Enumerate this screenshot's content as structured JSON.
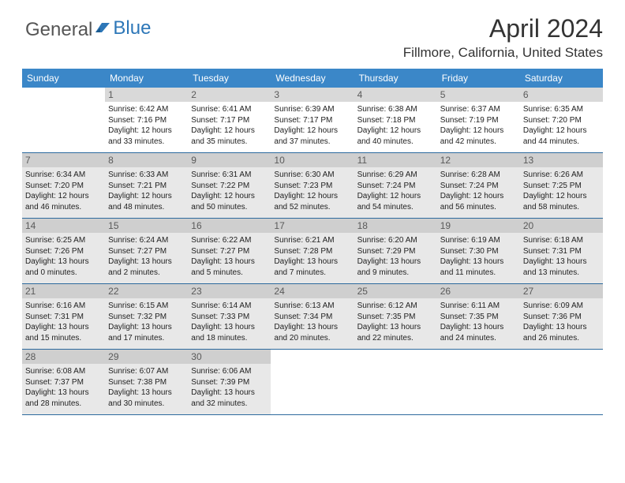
{
  "logo": {
    "part1": "General",
    "part2": "Blue"
  },
  "title": "April 2024",
  "location": "Fillmore, California, United States",
  "day_headers": [
    "Sunday",
    "Monday",
    "Tuesday",
    "Wednesday",
    "Thursday",
    "Friday",
    "Saturday"
  ],
  "colors": {
    "header_bg": "#3b87c8",
    "shaded_bg": "#e8e8e8",
    "daynum_bg": "#d9d9d9",
    "border": "#2d6a9e"
  },
  "weeks": [
    [
      {
        "day": "",
        "shaded": false,
        "sunrise": "",
        "sunset": "",
        "daylight1": "",
        "daylight2": ""
      },
      {
        "day": "1",
        "shaded": false,
        "sunrise": "Sunrise: 6:42 AM",
        "sunset": "Sunset: 7:16 PM",
        "daylight1": "Daylight: 12 hours",
        "daylight2": "and 33 minutes."
      },
      {
        "day": "2",
        "shaded": false,
        "sunrise": "Sunrise: 6:41 AM",
        "sunset": "Sunset: 7:17 PM",
        "daylight1": "Daylight: 12 hours",
        "daylight2": "and 35 minutes."
      },
      {
        "day": "3",
        "shaded": false,
        "sunrise": "Sunrise: 6:39 AM",
        "sunset": "Sunset: 7:17 PM",
        "daylight1": "Daylight: 12 hours",
        "daylight2": "and 37 minutes."
      },
      {
        "day": "4",
        "shaded": false,
        "sunrise": "Sunrise: 6:38 AM",
        "sunset": "Sunset: 7:18 PM",
        "daylight1": "Daylight: 12 hours",
        "daylight2": "and 40 minutes."
      },
      {
        "day": "5",
        "shaded": false,
        "sunrise": "Sunrise: 6:37 AM",
        "sunset": "Sunset: 7:19 PM",
        "daylight1": "Daylight: 12 hours",
        "daylight2": "and 42 minutes."
      },
      {
        "day": "6",
        "shaded": false,
        "sunrise": "Sunrise: 6:35 AM",
        "sunset": "Sunset: 7:20 PM",
        "daylight1": "Daylight: 12 hours",
        "daylight2": "and 44 minutes."
      }
    ],
    [
      {
        "day": "7",
        "shaded": true,
        "sunrise": "Sunrise: 6:34 AM",
        "sunset": "Sunset: 7:20 PM",
        "daylight1": "Daylight: 12 hours",
        "daylight2": "and 46 minutes."
      },
      {
        "day": "8",
        "shaded": true,
        "sunrise": "Sunrise: 6:33 AM",
        "sunset": "Sunset: 7:21 PM",
        "daylight1": "Daylight: 12 hours",
        "daylight2": "and 48 minutes."
      },
      {
        "day": "9",
        "shaded": true,
        "sunrise": "Sunrise: 6:31 AM",
        "sunset": "Sunset: 7:22 PM",
        "daylight1": "Daylight: 12 hours",
        "daylight2": "and 50 minutes."
      },
      {
        "day": "10",
        "shaded": true,
        "sunrise": "Sunrise: 6:30 AM",
        "sunset": "Sunset: 7:23 PM",
        "daylight1": "Daylight: 12 hours",
        "daylight2": "and 52 minutes."
      },
      {
        "day": "11",
        "shaded": true,
        "sunrise": "Sunrise: 6:29 AM",
        "sunset": "Sunset: 7:24 PM",
        "daylight1": "Daylight: 12 hours",
        "daylight2": "and 54 minutes."
      },
      {
        "day": "12",
        "shaded": true,
        "sunrise": "Sunrise: 6:28 AM",
        "sunset": "Sunset: 7:24 PM",
        "daylight1": "Daylight: 12 hours",
        "daylight2": "and 56 minutes."
      },
      {
        "day": "13",
        "shaded": true,
        "sunrise": "Sunrise: 6:26 AM",
        "sunset": "Sunset: 7:25 PM",
        "daylight1": "Daylight: 12 hours",
        "daylight2": "and 58 minutes."
      }
    ],
    [
      {
        "day": "14",
        "shaded": true,
        "sunrise": "Sunrise: 6:25 AM",
        "sunset": "Sunset: 7:26 PM",
        "daylight1": "Daylight: 13 hours",
        "daylight2": "and 0 minutes."
      },
      {
        "day": "15",
        "shaded": true,
        "sunrise": "Sunrise: 6:24 AM",
        "sunset": "Sunset: 7:27 PM",
        "daylight1": "Daylight: 13 hours",
        "daylight2": "and 2 minutes."
      },
      {
        "day": "16",
        "shaded": true,
        "sunrise": "Sunrise: 6:22 AM",
        "sunset": "Sunset: 7:27 PM",
        "daylight1": "Daylight: 13 hours",
        "daylight2": "and 5 minutes."
      },
      {
        "day": "17",
        "shaded": true,
        "sunrise": "Sunrise: 6:21 AM",
        "sunset": "Sunset: 7:28 PM",
        "daylight1": "Daylight: 13 hours",
        "daylight2": "and 7 minutes."
      },
      {
        "day": "18",
        "shaded": true,
        "sunrise": "Sunrise: 6:20 AM",
        "sunset": "Sunset: 7:29 PM",
        "daylight1": "Daylight: 13 hours",
        "daylight2": "and 9 minutes."
      },
      {
        "day": "19",
        "shaded": true,
        "sunrise": "Sunrise: 6:19 AM",
        "sunset": "Sunset: 7:30 PM",
        "daylight1": "Daylight: 13 hours",
        "daylight2": "and 11 minutes."
      },
      {
        "day": "20",
        "shaded": true,
        "sunrise": "Sunrise: 6:18 AM",
        "sunset": "Sunset: 7:31 PM",
        "daylight1": "Daylight: 13 hours",
        "daylight2": "and 13 minutes."
      }
    ],
    [
      {
        "day": "21",
        "shaded": true,
        "sunrise": "Sunrise: 6:16 AM",
        "sunset": "Sunset: 7:31 PM",
        "daylight1": "Daylight: 13 hours",
        "daylight2": "and 15 minutes."
      },
      {
        "day": "22",
        "shaded": true,
        "sunrise": "Sunrise: 6:15 AM",
        "sunset": "Sunset: 7:32 PM",
        "daylight1": "Daylight: 13 hours",
        "daylight2": "and 17 minutes."
      },
      {
        "day": "23",
        "shaded": true,
        "sunrise": "Sunrise: 6:14 AM",
        "sunset": "Sunset: 7:33 PM",
        "daylight1": "Daylight: 13 hours",
        "daylight2": "and 18 minutes."
      },
      {
        "day": "24",
        "shaded": true,
        "sunrise": "Sunrise: 6:13 AM",
        "sunset": "Sunset: 7:34 PM",
        "daylight1": "Daylight: 13 hours",
        "daylight2": "and 20 minutes."
      },
      {
        "day": "25",
        "shaded": true,
        "sunrise": "Sunrise: 6:12 AM",
        "sunset": "Sunset: 7:35 PM",
        "daylight1": "Daylight: 13 hours",
        "daylight2": "and 22 minutes."
      },
      {
        "day": "26",
        "shaded": true,
        "sunrise": "Sunrise: 6:11 AM",
        "sunset": "Sunset: 7:35 PM",
        "daylight1": "Daylight: 13 hours",
        "daylight2": "and 24 minutes."
      },
      {
        "day": "27",
        "shaded": true,
        "sunrise": "Sunrise: 6:09 AM",
        "sunset": "Sunset: 7:36 PM",
        "daylight1": "Daylight: 13 hours",
        "daylight2": "and 26 minutes."
      }
    ],
    [
      {
        "day": "28",
        "shaded": true,
        "sunrise": "Sunrise: 6:08 AM",
        "sunset": "Sunset: 7:37 PM",
        "daylight1": "Daylight: 13 hours",
        "daylight2": "and 28 minutes."
      },
      {
        "day": "29",
        "shaded": true,
        "sunrise": "Sunrise: 6:07 AM",
        "sunset": "Sunset: 7:38 PM",
        "daylight1": "Daylight: 13 hours",
        "daylight2": "and 30 minutes."
      },
      {
        "day": "30",
        "shaded": true,
        "sunrise": "Sunrise: 6:06 AM",
        "sunset": "Sunset: 7:39 PM",
        "daylight1": "Daylight: 13 hours",
        "daylight2": "and 32 minutes."
      },
      {
        "day": "",
        "shaded": false,
        "sunrise": "",
        "sunset": "",
        "daylight1": "",
        "daylight2": ""
      },
      {
        "day": "",
        "shaded": false,
        "sunrise": "",
        "sunset": "",
        "daylight1": "",
        "daylight2": ""
      },
      {
        "day": "",
        "shaded": false,
        "sunrise": "",
        "sunset": "",
        "daylight1": "",
        "daylight2": ""
      },
      {
        "day": "",
        "shaded": false,
        "sunrise": "",
        "sunset": "",
        "daylight1": "",
        "daylight2": ""
      }
    ]
  ]
}
